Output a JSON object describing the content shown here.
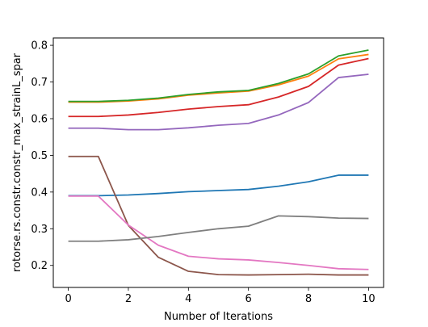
{
  "chart_data": {
    "type": "line",
    "title": "",
    "xlabel": "Number of Iterations",
    "ylabel": "rotorse.rs.constr.constr_max_strainL_spar",
    "xlim": [
      -0.5,
      10.5
    ],
    "ylim": [
      0.14,
      0.82
    ],
    "xticks": [
      0,
      2,
      4,
      6,
      8,
      10
    ],
    "yticks": [
      0.2,
      0.3,
      0.4,
      0.5,
      0.6,
      0.7,
      0.8
    ],
    "xtick_labels": [
      "0",
      "2",
      "4",
      "6",
      "8",
      "10"
    ],
    "ytick_labels": [
      "0.2",
      "0.3",
      "0.4",
      "0.5",
      "0.6",
      "0.7",
      "0.8"
    ],
    "grid": false,
    "legend": "none",
    "x": [
      0,
      1,
      2,
      3,
      4,
      5,
      6,
      7,
      8,
      9,
      10
    ],
    "series": [
      {
        "color": "#1f77b4",
        "values": [
          0.39,
          0.39,
          0.392,
          0.396,
          0.401,
          0.404,
          0.407,
          0.416,
          0.428,
          0.446,
          0.446
        ]
      },
      {
        "color": "#ff7f0e",
        "values": [
          0.645,
          0.645,
          0.648,
          0.654,
          0.664,
          0.67,
          0.675,
          0.692,
          0.716,
          0.763,
          0.775
        ]
      },
      {
        "color": "#2ca02c",
        "values": [
          0.647,
          0.647,
          0.65,
          0.656,
          0.666,
          0.673,
          0.677,
          0.696,
          0.722,
          0.771,
          0.787
        ]
      },
      {
        "color": "#d62728",
        "values": [
          0.606,
          0.606,
          0.61,
          0.617,
          0.626,
          0.633,
          0.638,
          0.659,
          0.688,
          0.746,
          0.764
        ]
      },
      {
        "color": "#9467bd",
        "values": [
          0.574,
          0.574,
          0.57,
          0.57,
          0.575,
          0.582,
          0.587,
          0.61,
          0.644,
          0.712,
          0.721
        ]
      },
      {
        "color": "#8c564b",
        "values": [
          0.497,
          0.497,
          0.309,
          0.222,
          0.184,
          0.175,
          0.174,
          0.175,
          0.176,
          0.174,
          0.174
        ]
      },
      {
        "color": "#e377c2",
        "values": [
          0.389,
          0.389,
          0.31,
          0.255,
          0.225,
          0.218,
          0.215,
          0.208,
          0.2,
          0.191,
          0.189
        ]
      },
      {
        "color": "#7f7f7f",
        "values": [
          0.266,
          0.266,
          0.27,
          0.279,
          0.29,
          0.3,
          0.307,
          0.335,
          0.333,
          0.329,
          0.328
        ]
      }
    ]
  }
}
